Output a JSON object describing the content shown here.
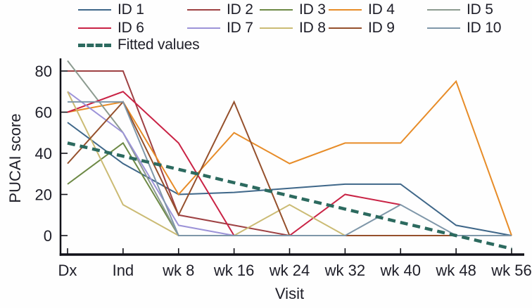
{
  "chart_data": {
    "type": "line",
    "title": "",
    "xlabel": "Visit",
    "ylabel": "PUCAI score",
    "categories": [
      "Dx",
      "Ind",
      "wk 8",
      "wk 16",
      "wk 24",
      "wk 32",
      "wk 40",
      "wk 48",
      "wk 56"
    ],
    "yticks": [
      0,
      20,
      40,
      60,
      80
    ],
    "ylim": [
      -10,
      87
    ],
    "grid": false,
    "legend_position": "top",
    "series": [
      {
        "name": "ID 1",
        "color": "#3f6789",
        "style": "solid",
        "values": [
          55,
          35,
          20,
          21,
          23,
          25,
          25,
          5,
          0
        ]
      },
      {
        "name": "ID 2",
        "color": "#9e4143",
        "style": "solid",
        "values": [
          80,
          80,
          10,
          5,
          0,
          0,
          0,
          0,
          0
        ]
      },
      {
        "name": "ID 3",
        "color": "#6d8945",
        "style": "solid",
        "values": [
          25,
          45,
          0,
          0,
          0,
          0,
          0,
          0,
          0
        ]
      },
      {
        "name": "ID 4",
        "color": "#e78c28",
        "style": "solid",
        "values": [
          60,
          65,
          20,
          50,
          35,
          45,
          45,
          75,
          0
        ]
      },
      {
        "name": "ID 5",
        "color": "#8c9b90",
        "style": "solid",
        "values": [
          85,
          50,
          0,
          0,
          0,
          0,
          0,
          0,
          0
        ]
      },
      {
        "name": "ID 6",
        "color": "#c92345",
        "style": "solid",
        "values": [
          60,
          70,
          45,
          0,
          0,
          20,
          15,
          null,
          null
        ]
      },
      {
        "name": "ID 7",
        "color": "#9c93d8",
        "style": "solid",
        "values": [
          70,
          50,
          5,
          0,
          0,
          0,
          0,
          0,
          0
        ]
      },
      {
        "name": "ID 8",
        "color": "#cbbb74",
        "style": "solid",
        "values": [
          70,
          15,
          0,
          0,
          15,
          0,
          0,
          0,
          0
        ]
      },
      {
        "name": "ID 9",
        "color": "#95502c",
        "style": "solid",
        "values": [
          35,
          65,
          10,
          65,
          0,
          0,
          0,
          0,
          0
        ]
      },
      {
        "name": "ID 10",
        "color": "#7f97a9",
        "style": "solid",
        "values": [
          65,
          65,
          0,
          0,
          0,
          0,
          15,
          0,
          0
        ]
      },
      {
        "name": "Fitted values",
        "color": "#2c6a5f",
        "style": "dashed",
        "values": [
          45,
          38.6,
          32.2,
          25.7,
          19.3,
          12.9,
          6.4,
          0,
          -6.4
        ]
      }
    ]
  }
}
